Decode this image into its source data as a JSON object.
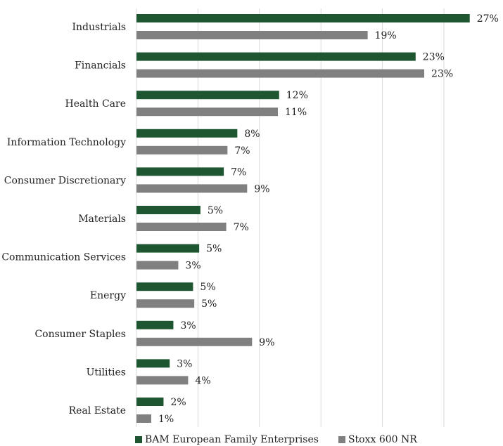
{
  "chart_data": {
    "type": "bar",
    "orientation": "horizontal",
    "categories": [
      "Industrials",
      "Financials",
      "Health Care",
      "Information Technology",
      "Consumer Discretionary",
      "Materials",
      "Communication Services",
      "Energy",
      "Consumer Staples",
      "Utilities",
      "Real Estate"
    ],
    "series": [
      {
        "name": "BAM European Family Enterprises",
        "color": "#1e5631",
        "values": [
          27.1,
          22.7,
          11.6,
          8.2,
          7.1,
          5.2,
          5.1,
          4.6,
          3.0,
          2.7,
          2.2
        ],
        "labels": [
          "27%",
          "23%",
          "12%",
          "8%",
          "7%",
          "5%",
          "5%",
          "5%",
          "3%",
          "3%",
          "2%"
        ]
      },
      {
        "name": "Stoxx 600 NR",
        "color": "#808080",
        "values": [
          18.8,
          23.4,
          11.5,
          7.4,
          9.0,
          7.3,
          3.4,
          4.7,
          9.4,
          4.2,
          1.2
        ],
        "labels": [
          "19%",
          "23%",
          "11%",
          "7%",
          "9%",
          "7%",
          "3%",
          "5%",
          "9%",
          "4%",
          "1%"
        ]
      }
    ],
    "xlim": [
      0,
      30
    ],
    "x_gridlines": [
      0,
      5,
      10,
      15,
      20,
      25
    ],
    "grid": true,
    "gridline_color": "#d9d9d9",
    "legend_position": "bottom"
  }
}
